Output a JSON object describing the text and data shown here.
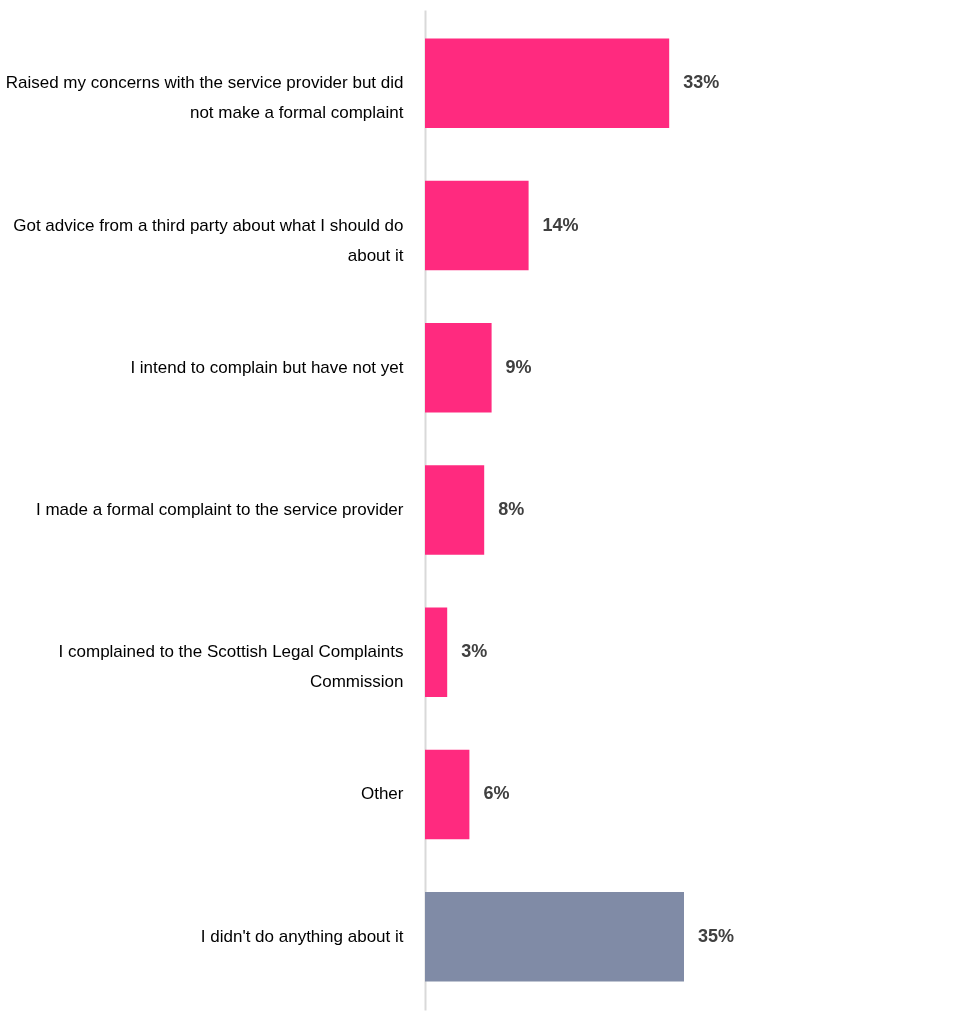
{
  "chart_data": {
    "type": "bar",
    "orientation": "horizontal",
    "value_labels": [
      "33%",
      "14%",
      "9%",
      "8%",
      "3%",
      "6%",
      "35%"
    ],
    "categories": [
      "Raised my concerns with the service provider but did not make a formal complaint",
      "Got advice from a third party about what I should do about it",
      "I intend to complain but have not yet",
      "I made a formal complaint to the service provider",
      "I complained to the  Scottish Legal Complaints Commission",
      "Other",
      "I didn't do anything about it"
    ],
    "values": [
      33,
      14,
      9,
      8,
      3,
      6,
      35
    ],
    "colors": [
      "#ff2a7f",
      "#ff2a7f",
      "#ff2a7f",
      "#ff2a7f",
      "#ff2a7f",
      "#ff2a7f",
      "#808ba6"
    ],
    "grid": false
  }
}
